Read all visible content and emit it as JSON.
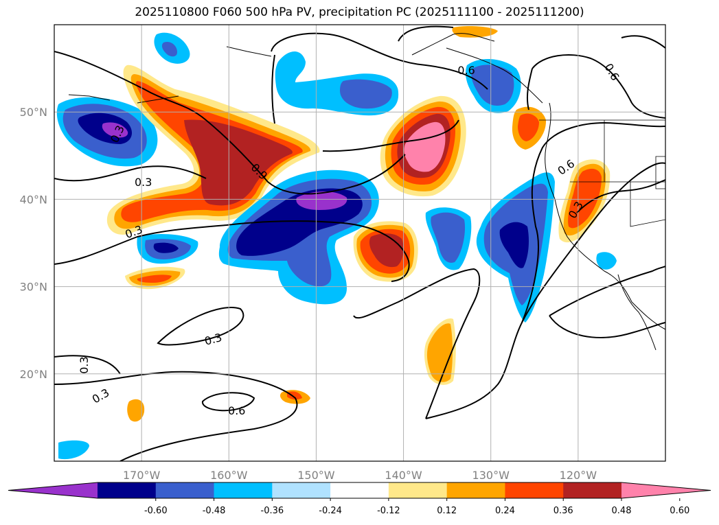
{
  "title": "2025110800 F060 500 hPa PV, precipitation PC (2025111100 - 2025111200)",
  "map": {
    "projection": "PlateCarree",
    "lon_range": [
      -180,
      -110
    ],
    "lat_range": [
      10,
      60
    ],
    "gridlines": true,
    "lat_ticks": [
      {
        "value": 20,
        "label": "20°N"
      },
      {
        "value": 30,
        "label": "30°N"
      },
      {
        "value": 40,
        "label": "40°N"
      },
      {
        "value": 50,
        "label": "50°N"
      }
    ],
    "lon_ticks": [
      {
        "value": -170,
        "label": "170°W"
      },
      {
        "value": -160,
        "label": "160°W"
      },
      {
        "value": -150,
        "label": "150°W"
      },
      {
        "value": -140,
        "label": "140°W"
      },
      {
        "value": -130,
        "label": "130°W"
      },
      {
        "value": -120,
        "label": "120°W"
      }
    ]
  },
  "colorbar": {
    "extend": "both",
    "tick_labels": [
      "-0.60",
      "-0.48",
      "-0.36",
      "-0.24",
      "-0.12",
      "0.12",
      "0.24",
      "0.36",
      "0.48",
      "0.60"
    ],
    "colors": [
      "#9932cc",
      "#00008b",
      "#3a5fcd",
      "#00bfff",
      "#b0e2ff",
      "#ffffff",
      "#ffe88a",
      "#ffa500",
      "#ff4500",
      "#b22222",
      "#ff82ab"
    ]
  },
  "contour_labels": [
    {
      "text": "0.3",
      "lon": -172.8,
      "lat": 47.5,
      "angle": -65
    },
    {
      "text": "0.3",
      "lon": -169.8,
      "lat": 42.0,
      "angle": 0
    },
    {
      "text": "0.9",
      "lon": -156.5,
      "lat": 43.2,
      "angle": 45
    },
    {
      "text": "0.3",
      "lon": -170.9,
      "lat": 36.3,
      "angle": -20
    },
    {
      "text": "0.3",
      "lon": -161.8,
      "lat": 24.0,
      "angle": -15
    },
    {
      "text": "0.3",
      "lon": -176.6,
      "lat": 21.0,
      "angle": -90
    },
    {
      "text": "0.3",
      "lon": -174.7,
      "lat": 17.5,
      "angle": -30
    },
    {
      "text": "0.6",
      "lon": -159.1,
      "lat": 15.8,
      "angle": 0
    },
    {
      "text": "0.6",
      "lon": -132.8,
      "lat": 54.8,
      "angle": 0
    },
    {
      "text": "0.6",
      "lon": -116.1,
      "lat": 54.6,
      "angle": 60
    },
    {
      "text": "0.6",
      "lon": -121.4,
      "lat": 43.7,
      "angle": -35
    },
    {
      "text": "0.3",
      "lon": -120.3,
      "lat": 38.8,
      "angle": -60
    }
  ]
}
